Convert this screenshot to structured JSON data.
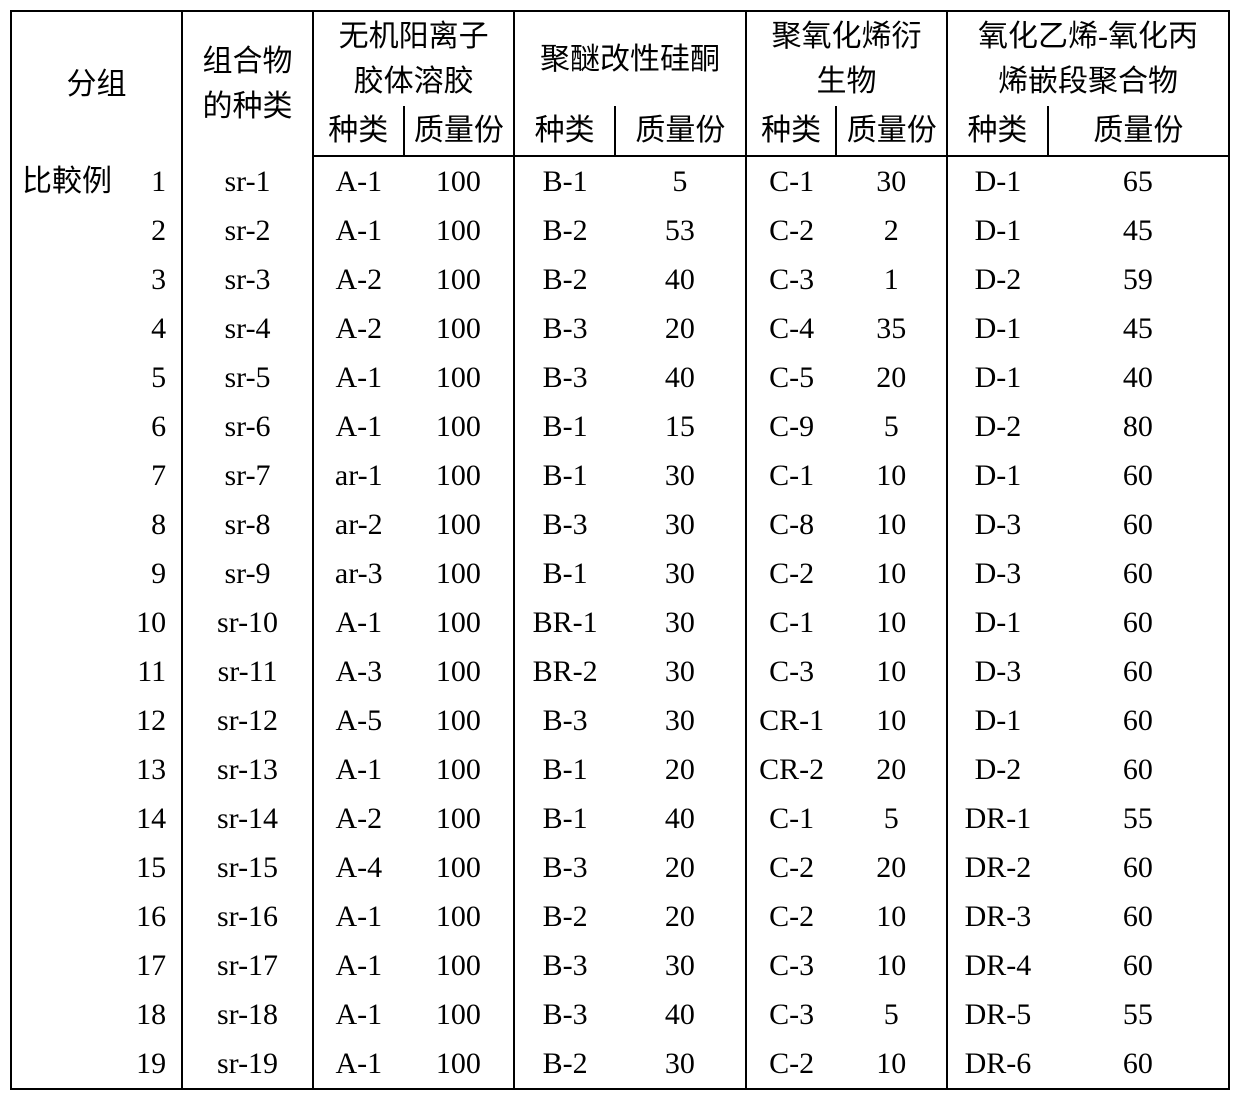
{
  "background_color": "#ffffff",
  "border_color": "#000000",
  "font_size_pt": 22,
  "header": {
    "group_label": "分组",
    "composition_label": "组合物\n的种类",
    "col_groups": [
      {
        "title": "无机阳离子\n胶体溶胶",
        "sub": [
          "种类",
          "质量份"
        ]
      },
      {
        "title": "聚醚改性硅酮",
        "sub": [
          "种类",
          "质量份"
        ]
      },
      {
        "title": "聚氧化烯衍\n生物",
        "sub": [
          "种类",
          "质量份"
        ]
      },
      {
        "title": "氧化乙烯-氧化丙\n烯嵌段聚合物",
        "sub": [
          "种类",
          "质量份"
        ]
      }
    ]
  },
  "row_group_label": "比較例",
  "rows": [
    {
      "n": 1,
      "comp": "sr-1",
      "a": "A-1",
      "aq": 100,
      "b": "B-1",
      "bq": 5,
      "c": "C-1",
      "cq": 30,
      "d": "D-1",
      "dq": 65
    },
    {
      "n": 2,
      "comp": "sr-2",
      "a": "A-1",
      "aq": 100,
      "b": "B-2",
      "bq": 53,
      "c": "C-2",
      "cq": 2,
      "d": "D-1",
      "dq": 45
    },
    {
      "n": 3,
      "comp": "sr-3",
      "a": "A-2",
      "aq": 100,
      "b": "B-2",
      "bq": 40,
      "c": "C-3",
      "cq": 1,
      "d": "D-2",
      "dq": 59
    },
    {
      "n": 4,
      "comp": "sr-4",
      "a": "A-2",
      "aq": 100,
      "b": "B-3",
      "bq": 20,
      "c": "C-4",
      "cq": 35,
      "d": "D-1",
      "dq": 45
    },
    {
      "n": 5,
      "comp": "sr-5",
      "a": "A-1",
      "aq": 100,
      "b": "B-3",
      "bq": 40,
      "c": "C-5",
      "cq": 20,
      "d": "D-1",
      "dq": 40
    },
    {
      "n": 6,
      "comp": "sr-6",
      "a": "A-1",
      "aq": 100,
      "b": "B-1",
      "bq": 15,
      "c": "C-9",
      "cq": 5,
      "d": "D-2",
      "dq": 80
    },
    {
      "n": 7,
      "comp": "sr-7",
      "a": "ar-1",
      "aq": 100,
      "b": "B-1",
      "bq": 30,
      "c": "C-1",
      "cq": 10,
      "d": "D-1",
      "dq": 60
    },
    {
      "n": 8,
      "comp": "sr-8",
      "a": "ar-2",
      "aq": 100,
      "b": "B-3",
      "bq": 30,
      "c": "C-8",
      "cq": 10,
      "d": "D-3",
      "dq": 60
    },
    {
      "n": 9,
      "comp": "sr-9",
      "a": "ar-3",
      "aq": 100,
      "b": "B-1",
      "bq": 30,
      "c": "C-2",
      "cq": 10,
      "d": "D-3",
      "dq": 60
    },
    {
      "n": 10,
      "comp": "sr-10",
      "a": "A-1",
      "aq": 100,
      "b": "BR-1",
      "bq": 30,
      "c": "C-1",
      "cq": 10,
      "d": "D-1",
      "dq": 60
    },
    {
      "n": 11,
      "comp": "sr-11",
      "a": "A-3",
      "aq": 100,
      "b": "BR-2",
      "bq": 30,
      "c": "C-3",
      "cq": 10,
      "d": "D-3",
      "dq": 60
    },
    {
      "n": 12,
      "comp": "sr-12",
      "a": "A-5",
      "aq": 100,
      "b": "B-3",
      "bq": 30,
      "c": "CR-1",
      "cq": 10,
      "d": "D-1",
      "dq": 60
    },
    {
      "n": 13,
      "comp": "sr-13",
      "a": "A-1",
      "aq": 100,
      "b": "B-1",
      "bq": 20,
      "c": "CR-2",
      "cq": 20,
      "d": "D-2",
      "dq": 60
    },
    {
      "n": 14,
      "comp": "sr-14",
      "a": "A-2",
      "aq": 100,
      "b": "B-1",
      "bq": 40,
      "c": "C-1",
      "cq": 5,
      "d": "DR-1",
      "dq": 55
    },
    {
      "n": 15,
      "comp": "sr-15",
      "a": "A-4",
      "aq": 100,
      "b": "B-3",
      "bq": 20,
      "c": "C-2",
      "cq": 20,
      "d": "DR-2",
      "dq": 60
    },
    {
      "n": 16,
      "comp": "sr-16",
      "a": "A-1",
      "aq": 100,
      "b": "B-2",
      "bq": 20,
      "c": "C-2",
      "cq": 10,
      "d": "DR-3",
      "dq": 60
    },
    {
      "n": 17,
      "comp": "sr-17",
      "a": "A-1",
      "aq": 100,
      "b": "B-3",
      "bq": 30,
      "c": "C-3",
      "cq": 10,
      "d": "DR-4",
      "dq": 60
    },
    {
      "n": 18,
      "comp": "sr-18",
      "a": "A-1",
      "aq": 100,
      "b": "B-3",
      "bq": 40,
      "c": "C-3",
      "cq": 5,
      "d": "DR-5",
      "dq": 55
    },
    {
      "n": 19,
      "comp": "sr-19",
      "a": "A-1",
      "aq": 100,
      "b": "B-2",
      "bq": 30,
      "c": "C-2",
      "cq": 10,
      "d": "DR-6",
      "dq": 60
    }
  ]
}
